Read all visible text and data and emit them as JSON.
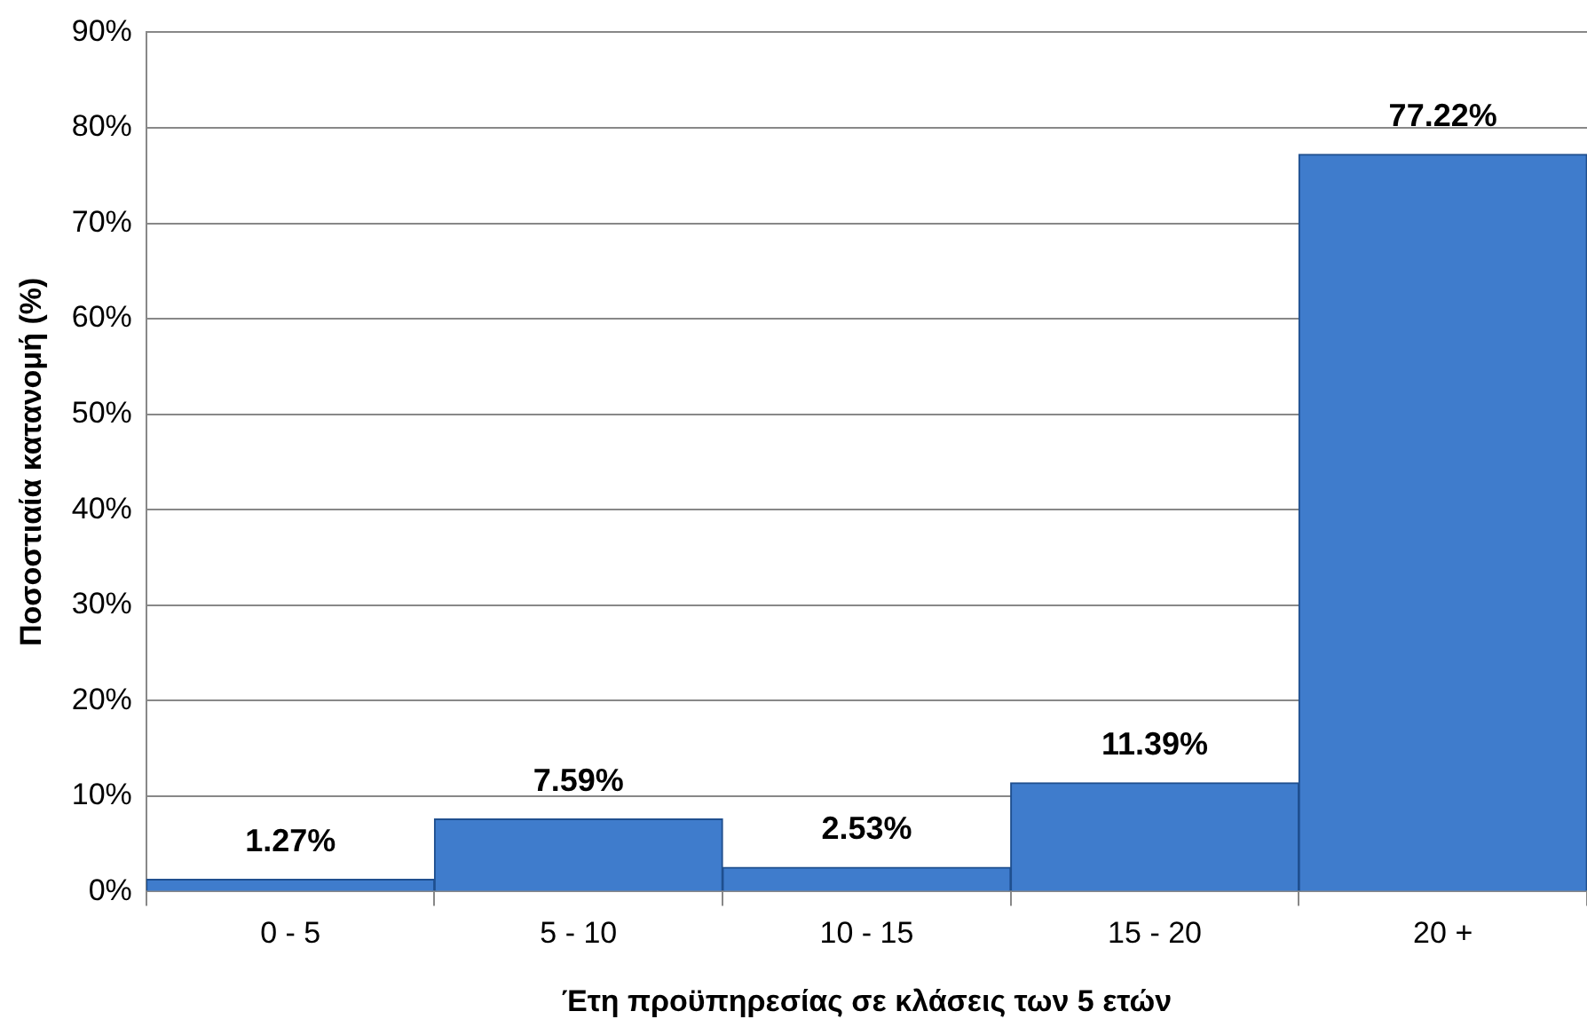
{
  "chart_data": {
    "type": "bar",
    "xlabel": "Έτη προϋπηρεσίας σε κλάσεις των 5 ετών",
    "ylabel": "Ποσοστιαία κατανομή (%)",
    "categories": [
      "0 - 5",
      "5 - 10",
      "10 - 15",
      "15 - 20",
      "20 +"
    ],
    "values": [
      1.27,
      7.59,
      2.53,
      11.39,
      77.22
    ],
    "value_labels": [
      "1.27%",
      "7.59%",
      "2.53%",
      "11.39%",
      "77.22%"
    ],
    "color": "#3f7ccc",
    "ylim": [
      0,
      90
    ],
    "yticks": [
      {
        "value": 0,
        "label": "0%"
      },
      {
        "value": 10,
        "label": "10%"
      },
      {
        "value": 20,
        "label": "20%"
      },
      {
        "value": 30,
        "label": "30%"
      },
      {
        "value": 40,
        "label": "40%"
      },
      {
        "value": 50,
        "label": "50%"
      },
      {
        "value": 60,
        "label": "60%"
      },
      {
        "value": 70,
        "label": "70%"
      },
      {
        "value": 80,
        "label": "80%"
      },
      {
        "value": 90,
        "label": "90%"
      }
    ],
    "grid": "y",
    "legend": false
  }
}
